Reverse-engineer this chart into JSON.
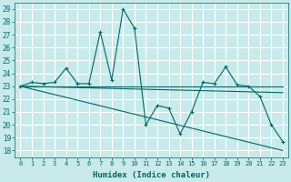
{
  "xlabel": "Humidex (Indice chaleur)",
  "bg_color": "#c8eaea",
  "grid_color": "#b0d8d8",
  "line_color": "#006666",
  "xlim": [
    -0.5,
    23.5
  ],
  "ylim": [
    17.5,
    29.5
  ],
  "xticks": [
    0,
    1,
    2,
    3,
    4,
    5,
    6,
    7,
    8,
    9,
    10,
    11,
    12,
    13,
    14,
    15,
    16,
    17,
    18,
    19,
    20,
    21,
    22,
    23
  ],
  "yticks": [
    18,
    19,
    20,
    21,
    22,
    23,
    24,
    25,
    26,
    27,
    28,
    29
  ],
  "main_series": {
    "x": [
      0,
      1,
      2,
      3,
      4,
      5,
      6,
      7,
      8,
      9,
      10,
      11,
      12,
      13,
      14,
      15,
      16,
      17,
      18,
      19,
      20,
      21,
      22,
      23
    ],
    "y": [
      23.0,
      23.3,
      23.2,
      23.3,
      24.4,
      23.2,
      23.2,
      27.2,
      23.5,
      29.0,
      27.5,
      20.0,
      21.5,
      21.3,
      19.3,
      21.0,
      23.3,
      23.2,
      24.5,
      23.1,
      23.0,
      22.2,
      20.0,
      18.7
    ]
  },
  "trend_lines": [
    {
      "x": [
        0,
        23
      ],
      "y": [
        23.0,
        23.0
      ]
    },
    {
      "x": [
        0,
        23
      ],
      "y": [
        23.0,
        22.5
      ]
    },
    {
      "x": [
        0,
        23
      ],
      "y": [
        23.0,
        18.0
      ]
    }
  ]
}
